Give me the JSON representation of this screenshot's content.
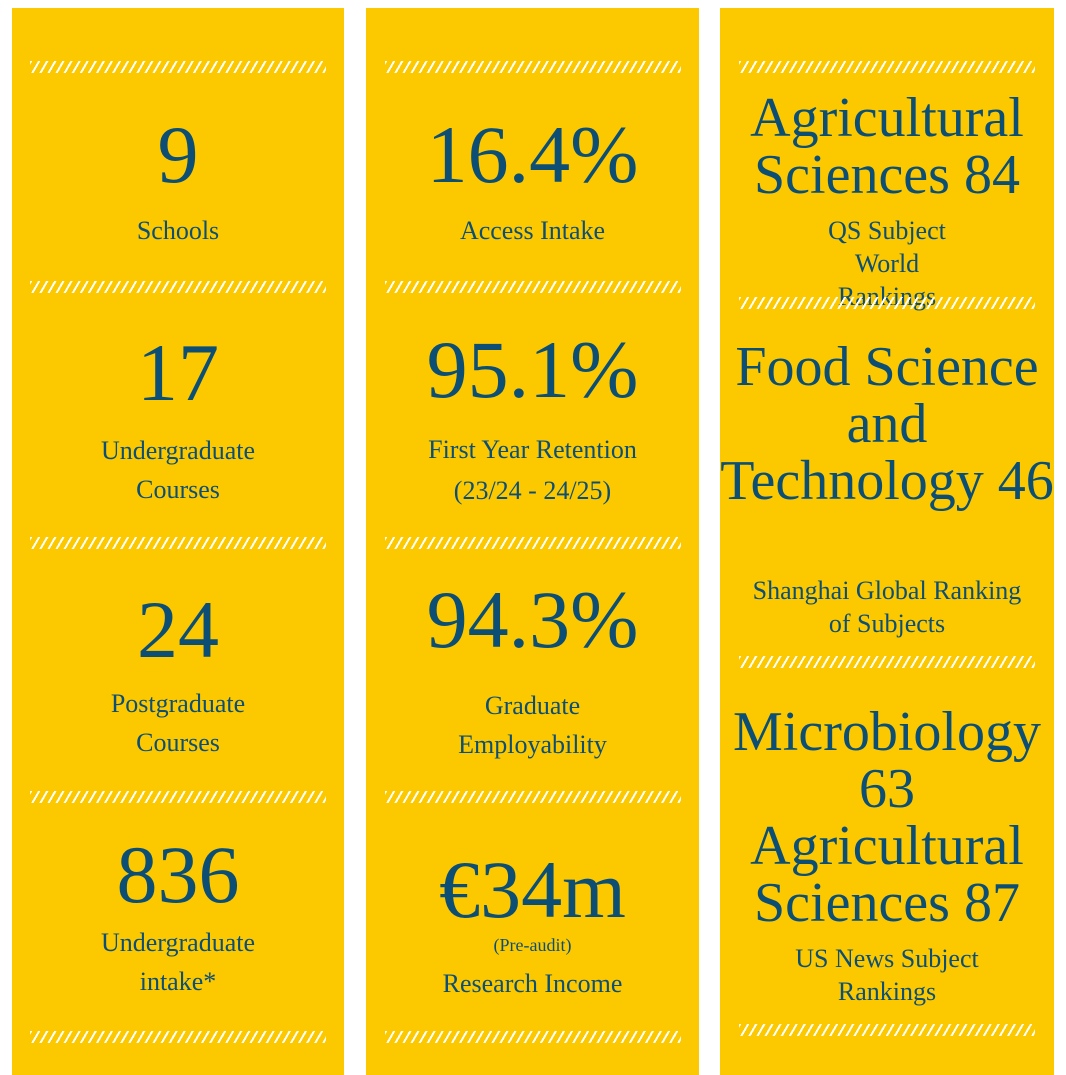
{
  "columns": [
    {
      "items": [
        {
          "value": "9",
          "label": "Schools"
        },
        {
          "value": "17",
          "label": "Undergraduate Courses"
        },
        {
          "value": "24",
          "label": "Postgraduate Courses"
        },
        {
          "value": "836",
          "label": "Undergraduate intake*"
        }
      ]
    },
    {
      "items": [
        {
          "value": "16.4%",
          "label": "Access Intake"
        },
        {
          "value": "95.1%",
          "label": "First Year Retention",
          "note": "(23/24 - 24/25)"
        },
        {
          "value": "94.3%",
          "label": "Graduate Employability"
        },
        {
          "value": "€34m",
          "note": "(Pre-audit)",
          "label": "Research Income"
        }
      ]
    },
    {
      "items": [
        {
          "value": "Agricultural Sciences 84",
          "label": "QS Subject World Rankings"
        },
        {
          "value": "Food Science and Technology 46",
          "label": "Shanghai Global Ranking of Subjects"
        },
        {
          "value": "Microbiology 63 Agricultural Sciences 87",
          "label": "US News Subject Rankings"
        }
      ]
    }
  ]
}
